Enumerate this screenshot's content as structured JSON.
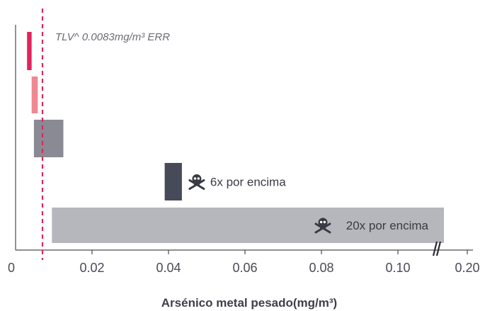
{
  "chart_data": {
    "type": "bar",
    "orientation": "horizontal-range",
    "xlabel": "Arsénico metal pesado(mg/m³)",
    "x_ticks": [
      {
        "value": 0,
        "label": "0"
      },
      {
        "value": 0.02,
        "label": "0.02"
      },
      {
        "value": 0.04,
        "label": "0.04"
      },
      {
        "value": 0.06,
        "label": "0.06"
      },
      {
        "value": 0.08,
        "label": "0.08"
      },
      {
        "value": 0.1,
        "label": "0.10"
      },
      {
        "value": 0.2,
        "label": "0.20"
      }
    ],
    "axis_break": {
      "between": [
        0.1,
        0.2
      ],
      "marker": "//"
    },
    "xlim": [
      0,
      0.2
    ],
    "reference_line": {
      "value": 0.0083,
      "label": "TLV^ 0.0083mg/m³ ERR",
      "color": "#e0245e",
      "style": "dashed"
    },
    "bars": [
      {
        "start": 0.003,
        "end": 0.0042,
        "color": "#e0245e"
      },
      {
        "start": 0.0042,
        "end": 0.0058,
        "color": "#f08792"
      },
      {
        "start": 0.0048,
        "end": 0.0125,
        "color": "#8a8a94"
      },
      {
        "start": 0.039,
        "end": 0.0435,
        "color": "#474a58",
        "annotation": "6x por encima",
        "icon": "skull-crossbones-icon"
      },
      {
        "start": 0.0095,
        "end": 0.2,
        "color": "#b6b6bd",
        "annotation": "20x por encima",
        "icon": "skull-crossbones-icon",
        "annotation_inside": true
      }
    ],
    "grid": false
  }
}
